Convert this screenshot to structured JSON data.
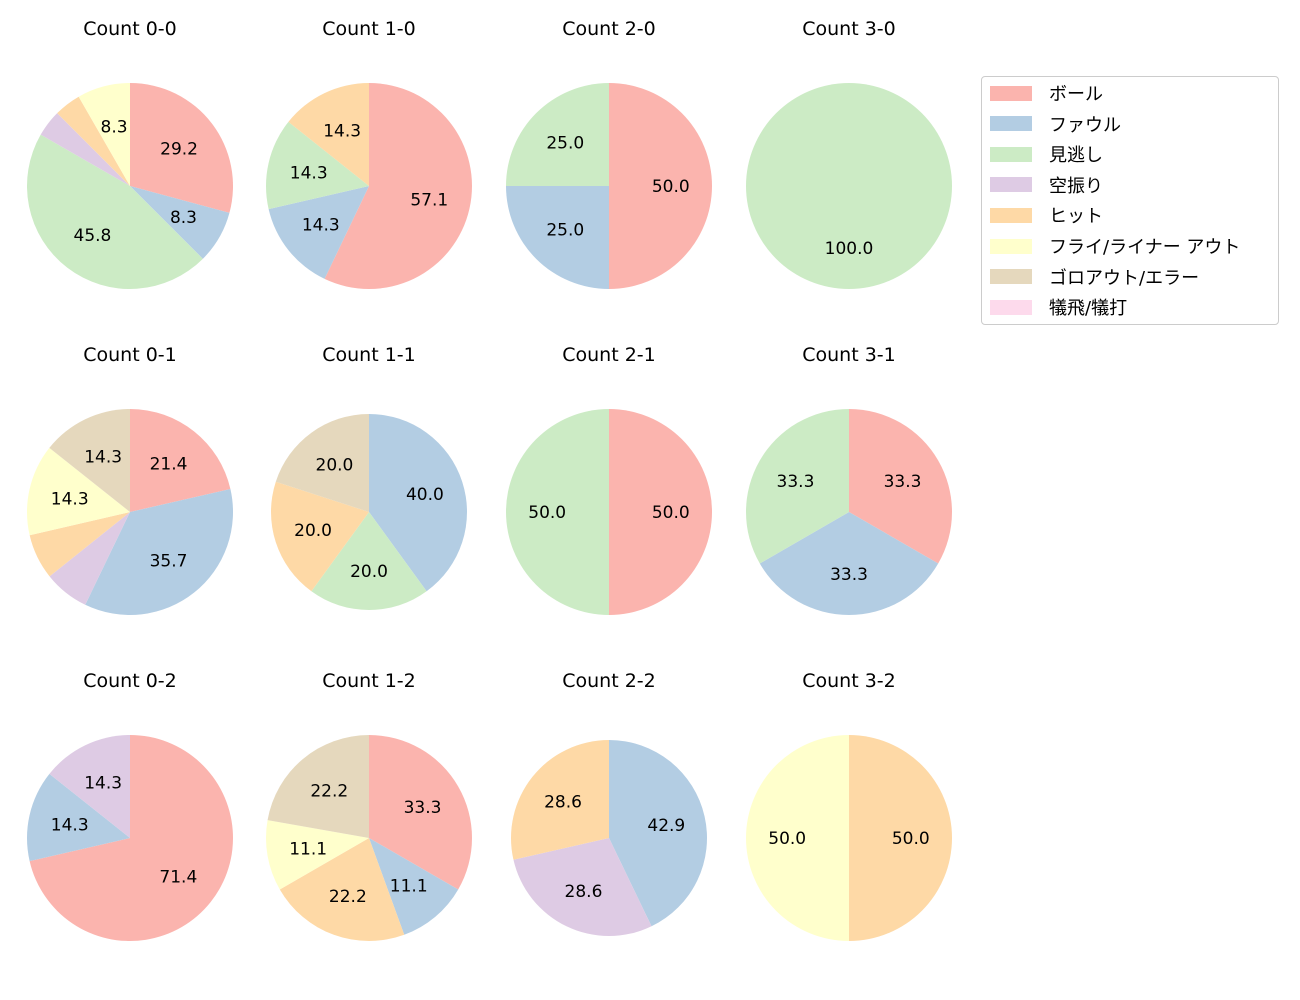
{
  "chart_data": {
    "type": "pie",
    "categories": [
      "ボール",
      "ファウル",
      "見逃し",
      "空振り",
      "ヒット",
      "フライ/ライナー アウト",
      "ゴロアウト/エラー",
      "犠飛/犠打"
    ],
    "colors": [
      "#fbb4ae",
      "#b3cde3",
      "#ccebc5",
      "#decbe4",
      "#fed9a6",
      "#ffffcc",
      "#e5d8bd",
      "#fddaec"
    ],
    "start_angle": 90,
    "direction": "clockwise",
    "legend_placement": "right",
    "pies": [
      {
        "title": "Count 0-0",
        "values": [
          29.2,
          8.3,
          45.8,
          4.2,
          4.2,
          8.3,
          0,
          0
        ]
      },
      {
        "title": "Count 1-0",
        "values": [
          57.1,
          14.3,
          14.3,
          0,
          14.3,
          0,
          0,
          0
        ]
      },
      {
        "title": "Count 2-0",
        "values": [
          50.0,
          25.0,
          25.0,
          0,
          0,
          0,
          0,
          0
        ]
      },
      {
        "title": "Count 3-0",
        "values": [
          0,
          0,
          100.0,
          0,
          0,
          0,
          0,
          0
        ]
      },
      {
        "title": "Count 0-1",
        "values": [
          21.4,
          35.7,
          0,
          7.1,
          7.1,
          14.3,
          14.3,
          0
        ]
      },
      {
        "title": "Count 1-1",
        "values": [
          0,
          40.0,
          20.0,
          0,
          20.0,
          0,
          20.0,
          0
        ]
      },
      {
        "title": "Count 2-1",
        "values": [
          50.0,
          0,
          50.0,
          0,
          0,
          0,
          0,
          0
        ]
      },
      {
        "title": "Count 3-1",
        "values": [
          33.3,
          33.3,
          33.3,
          0,
          0,
          0,
          0,
          0
        ]
      },
      {
        "title": "Count 0-2",
        "values": [
          71.4,
          14.3,
          0,
          14.3,
          0,
          0,
          0,
          0
        ]
      },
      {
        "title": "Count 1-2",
        "values": [
          33.3,
          11.1,
          0,
          0,
          22.2,
          11.1,
          22.2,
          0
        ]
      },
      {
        "title": "Count 2-2",
        "values": [
          0,
          42.9,
          0,
          28.6,
          28.6,
          0,
          0,
          0
        ]
      },
      {
        "title": "Count 3-2",
        "values": [
          0,
          0,
          0,
          0,
          50.0,
          50.0,
          0,
          0
        ]
      }
    ]
  }
}
